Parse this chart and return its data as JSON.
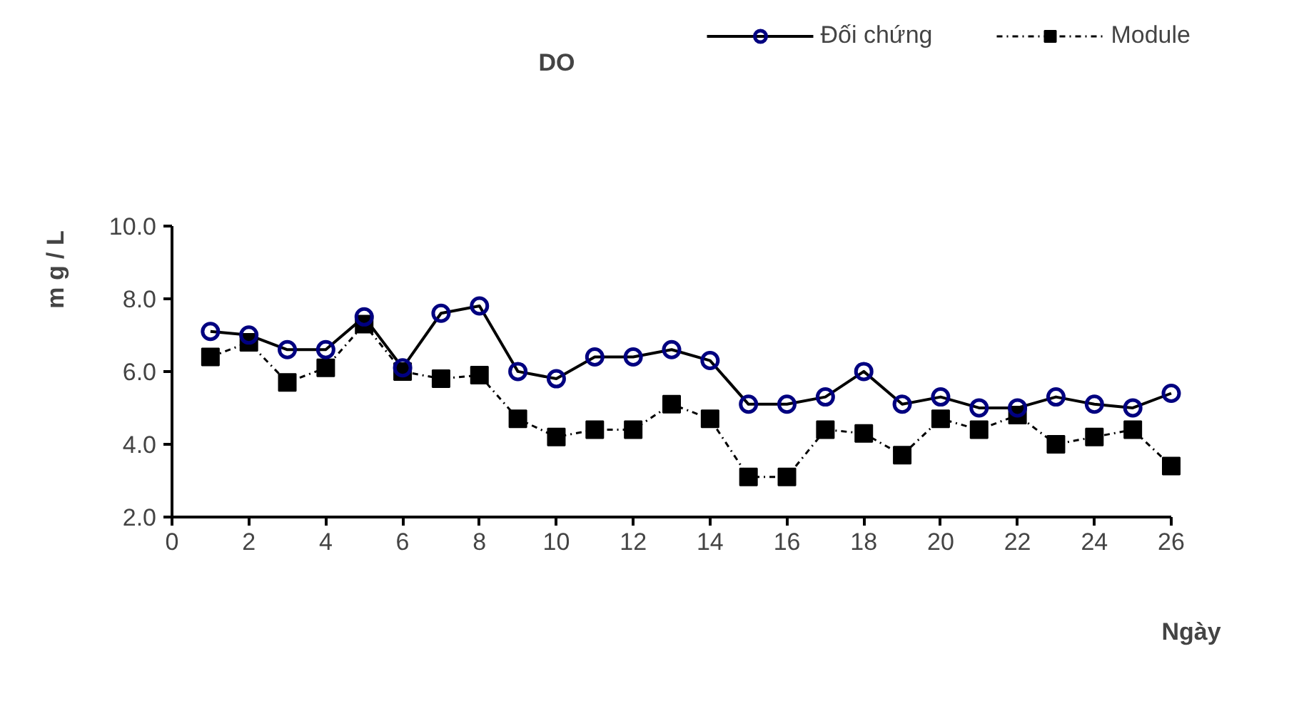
{
  "chart_data": {
    "type": "line",
    "title": "DO",
    "xlabel": "Ngày",
    "ylabel": "m g / L",
    "x": [
      1,
      2,
      3,
      4,
      5,
      6,
      7,
      8,
      9,
      10,
      11,
      12,
      13,
      14,
      15,
      16,
      17,
      18,
      19,
      20,
      21,
      22,
      23,
      24,
      25,
      26
    ],
    "series": [
      {
        "name": "Đối chứng",
        "color": "#000080",
        "marker": "circle",
        "line_style": "solid",
        "values": [
          7.1,
          7.0,
          6.6,
          6.6,
          7.5,
          6.1,
          7.6,
          7.8,
          6.0,
          5.8,
          6.4,
          6.4,
          6.6,
          6.3,
          5.1,
          5.1,
          5.3,
          6.0,
          5.1,
          5.3,
          5.0,
          5.0,
          5.3,
          5.1,
          5.0,
          5.4
        ]
      },
      {
        "name": "Module",
        "color": "#000000",
        "marker": "square",
        "line_style": "dotted",
        "values": [
          6.4,
          6.8,
          5.7,
          6.1,
          7.3,
          6.0,
          5.8,
          5.9,
          4.7,
          4.2,
          4.4,
          4.4,
          5.1,
          4.7,
          3.1,
          3.1,
          4.4,
          4.3,
          3.7,
          4.7,
          4.4,
          4.8,
          4.0,
          4.2,
          4.4,
          3.4
        ]
      }
    ],
    "xlim": [
      0,
      26
    ],
    "xticks": [
      0,
      2,
      4,
      6,
      8,
      10,
      12,
      14,
      16,
      18,
      20,
      22,
      24,
      26
    ],
    "ylim": [
      2,
      10
    ],
    "yticks": [
      {
        "value": 2,
        "label": "2.0"
      },
      {
        "value": 4,
        "label": "4.0"
      },
      {
        "value": 6,
        "label": "6.0"
      },
      {
        "value": 8,
        "label": "8.0"
      },
      {
        "value": 10,
        "label": "10.0"
      }
    ],
    "grid": false,
    "legend": "top right"
  }
}
